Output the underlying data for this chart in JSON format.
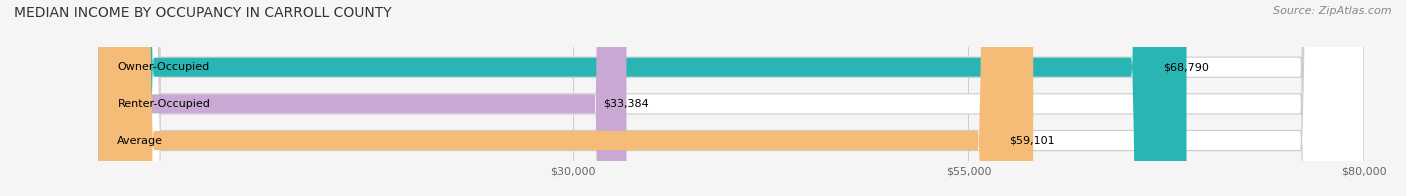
{
  "title": "MEDIAN INCOME BY OCCUPANCY IN CARROLL COUNTY",
  "source": "Source: ZipAtlas.com",
  "categories": [
    "Owner-Occupied",
    "Renter-Occupied",
    "Average"
  ],
  "values": [
    68790,
    33384,
    59101
  ],
  "colors": [
    "#2ab5b5",
    "#c9a8d4",
    "#f5bc78"
  ],
  "bar_labels": [
    "$68,790",
    "$33,384",
    "$59,101"
  ],
  "xlim": [
    0,
    80000
  ],
  "xticks": [
    30000,
    55000,
    80000
  ],
  "xtick_labels": [
    "$30,000",
    "$55,000",
    "$80,000"
  ],
  "title_fontsize": 10,
  "source_fontsize": 8,
  "label_fontsize": 8,
  "bar_label_fontsize": 8,
  "category_fontsize": 8,
  "background_color": "#f5f5f5"
}
